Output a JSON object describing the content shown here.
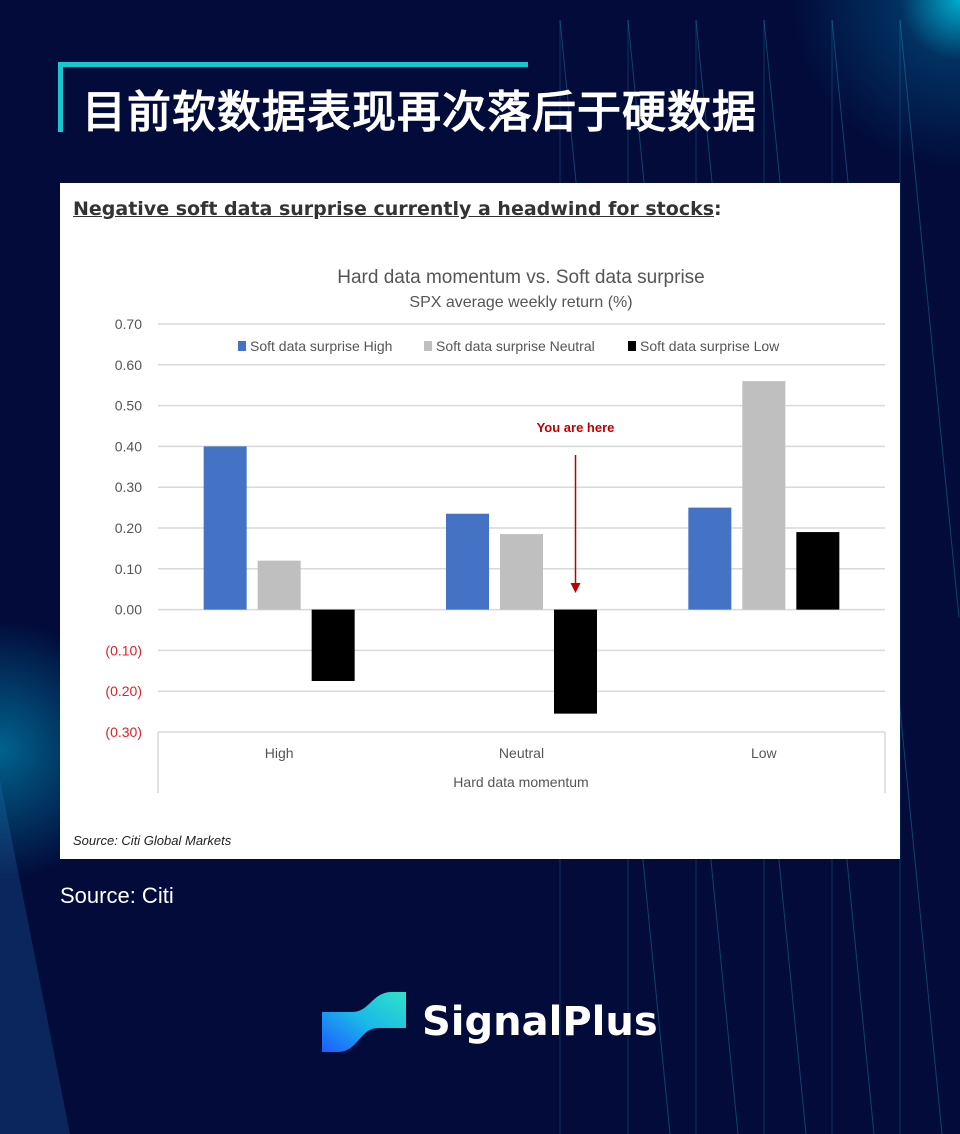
{
  "header": {
    "title": "目前软数据表现再次落后于硬数据"
  },
  "card": {
    "heading": "Negative soft data surprise currently a headwind for stocks",
    "heading_suffix": ":",
    "source": "Source: Citi Global Markets"
  },
  "footer": {
    "source": "Source: Citi",
    "brand": "SignalPlus"
  },
  "colors": {
    "background": "#020b3a",
    "accent": "#19c6cc",
    "high": "#4472c4",
    "neutral": "#bfbfbf",
    "low": "#000000",
    "annotation": "#c00000",
    "negative_tick": "#e0202a"
  },
  "chart_data": {
    "type": "bar",
    "title": "Hard data momentum vs. Soft data surprise",
    "subtitle": "SPX average weekly return (%)",
    "xlabel": "Hard data momentum",
    "ylabel": "",
    "categories": [
      "High",
      "Neutral",
      "Low"
    ],
    "series": [
      {
        "name": "Soft data surprise High",
        "values": [
          0.4,
          0.235,
          0.25
        ]
      },
      {
        "name": "Soft data surprise Neutral",
        "values": [
          0.12,
          0.185,
          0.56
        ]
      },
      {
        "name": "Soft data surprise Low",
        "values": [
          -0.175,
          -0.255,
          0.19
        ]
      }
    ],
    "ylim": [
      -0.3,
      0.7
    ],
    "yticks": [
      0.7,
      0.6,
      0.5,
      0.4,
      0.3,
      0.2,
      0.1,
      0.0,
      -0.1,
      -0.2,
      -0.3
    ],
    "ytick_labels": [
      "0.70",
      "0.60",
      "0.50",
      "0.40",
      "0.30",
      "0.20",
      "0.10",
      "0.00",
      "(0.10)",
      "(0.20)",
      "(0.30)"
    ],
    "grid": true,
    "legend": "top",
    "annotation": {
      "text": "You are here",
      "category": "Neutral",
      "series": "Soft data surprise Low"
    }
  }
}
